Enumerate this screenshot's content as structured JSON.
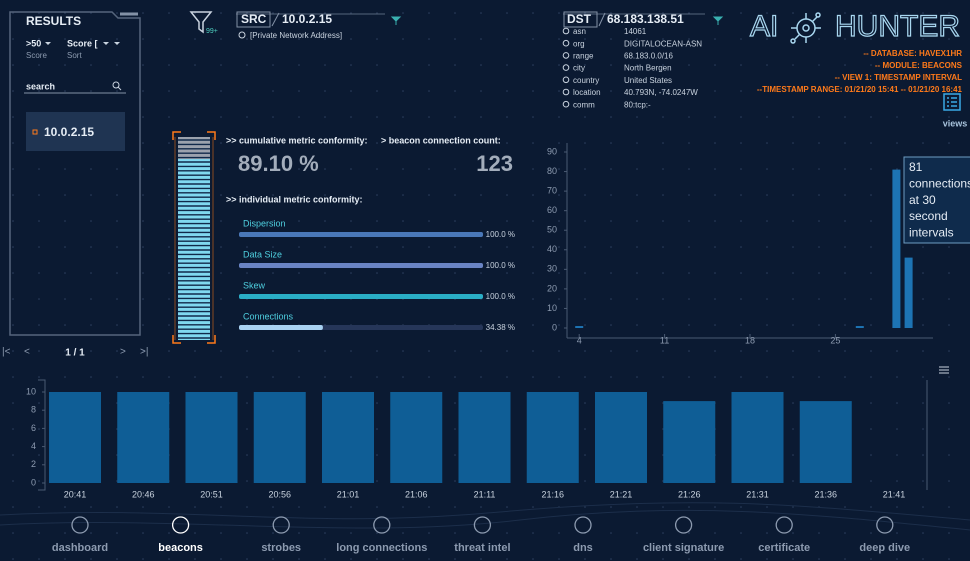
{
  "results": {
    "title": "RESULTS",
    "score_filter": ">50",
    "score_label": "Score",
    "sort_value": "Score [",
    "sort_label": "Sort",
    "search": "search",
    "items": [
      "10.0.2.15"
    ],
    "pagination": "1 / 1"
  },
  "filter_badge": "99+",
  "src": {
    "label": "SRC",
    "ip": "10.0.2.15",
    "note": "[Private Network Address]"
  },
  "dst": {
    "label": "DST",
    "ip": "68.183.138.51",
    "fields": [
      {
        "key": "asn",
        "value": "14061"
      },
      {
        "key": "org",
        "value": "DIGITALOCEAN-ASN"
      },
      {
        "key": "range",
        "value": "68.183.0.0/16"
      },
      {
        "key": "city",
        "value": "North Bergen"
      },
      {
        "key": "country",
        "value": "United States"
      },
      {
        "key": "location",
        "value": "40.793N, -74.0247W"
      },
      {
        "key": "comm",
        "value": "80:tcp:-"
      }
    ]
  },
  "logo": {
    "left": "AI",
    "right": "HUNTER"
  },
  "info": [
    "-- DATABASE: HAVEX1HR",
    "-- MODULE: BEACONS",
    "-- VIEW 1: TIMESTAMP INTERVAL",
    "--TIMESTAMP RANGE: 01/21/20 15:41 -- 01/21/20 16:41"
  ],
  "views": "views",
  "summary": {
    "cumulative_title": ">> cumulative metric conformity:",
    "cumulative_value": 89.1,
    "cumulative_value_label": "89.10 %",
    "gauge_lim": [
      0,
      100
    ],
    "count_title": "> beacon connection count:",
    "count": 123
  },
  "metrics": {
    "type": "bar",
    "title": ">> individual metric conformity:",
    "categories": [
      "Dispersion",
      "Data Size",
      "Skew",
      "Connections"
    ],
    "values": [
      100,
      100,
      100,
      34.38
    ],
    "value_labels": [
      "100.0 %",
      "100.0 %",
      "100.0 %",
      "34.38 %"
    ],
    "colors": [
      "#4a78b8",
      "#6a84c4",
      "#2aaec6",
      "#a9d2f2"
    ],
    "xlim": [
      0,
      100
    ]
  },
  "histogram": {
    "type": "bar",
    "x": [
      4,
      27,
      30,
      31
    ],
    "values": [
      1,
      1,
      81,
      36
    ],
    "xlim": [
      3,
      33
    ],
    "xticks": [
      4,
      11,
      18,
      25
    ],
    "ylim": [
      0,
      90
    ],
    "yticks": [
      0,
      10,
      20,
      30,
      40,
      50,
      60,
      70,
      80,
      90
    ],
    "color": "#1d74b4",
    "tooltip": [
      "81",
      "connections",
      "at 30",
      "second",
      "intervals"
    ]
  },
  "timeline": {
    "type": "bar",
    "categories": [
      "20:41",
      "20:46",
      "20:51",
      "20:56",
      "21:01",
      "21:06",
      "21:11",
      "21:16",
      "21:21",
      "21:26",
      "21:31",
      "21:36",
      "21:41"
    ],
    "values": [
      10,
      10,
      10,
      10,
      10,
      10,
      10,
      10,
      10,
      9,
      10,
      9,
      0
    ],
    "ylim": [
      0,
      10
    ],
    "yticks": [
      0,
      2,
      4,
      6,
      8,
      10
    ],
    "color": "#0f5e96"
  },
  "nav": {
    "items": [
      "dashboard",
      "beacons",
      "strobes",
      "long connections",
      "threat intel",
      "dns",
      "client signature",
      "certificate",
      "deep dive"
    ],
    "active": 1
  }
}
